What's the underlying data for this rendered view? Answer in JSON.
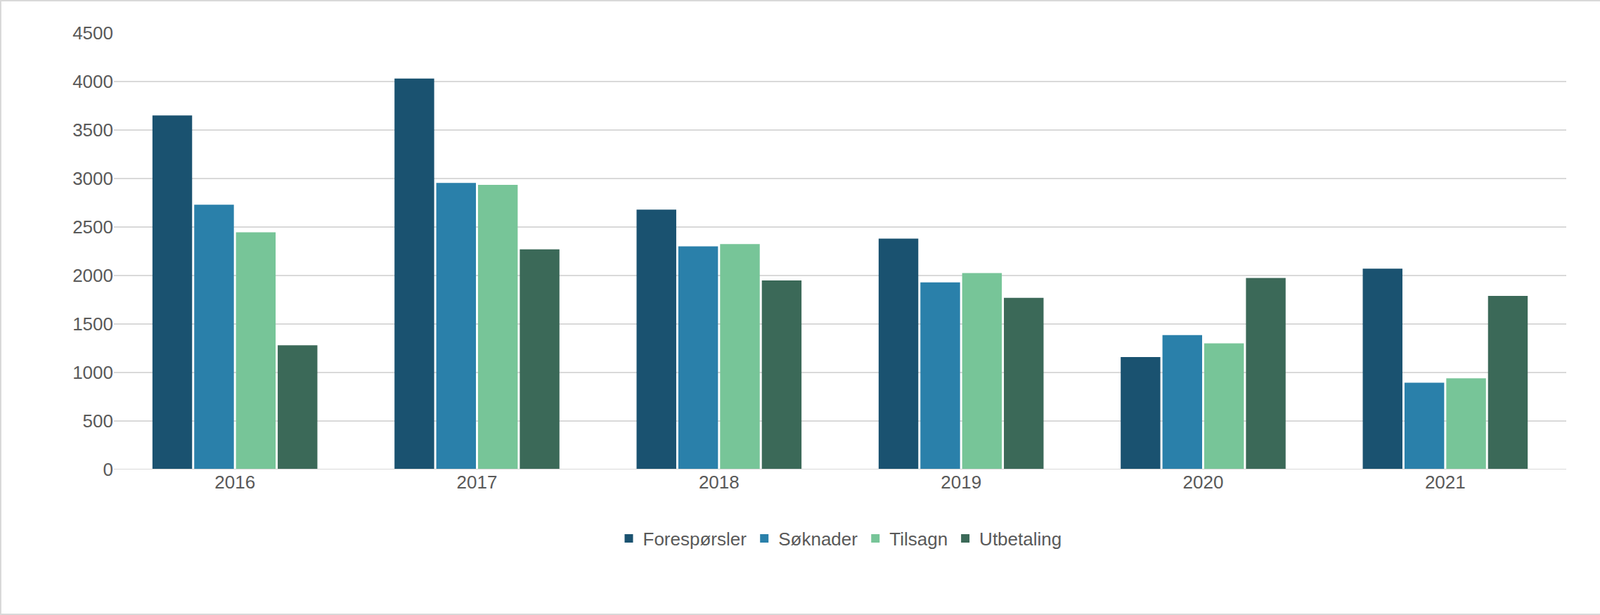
{
  "chart_data": {
    "type": "bar",
    "categories": [
      "2016",
      "2017",
      "2018",
      "2019",
      "2020",
      "2021"
    ],
    "series": [
      {
        "name": "Forespørsler",
        "color": "#1a5270",
        "values": [
          3650,
          4030,
          2680,
          2380,
          1160,
          2070
        ]
      },
      {
        "name": "Søknader",
        "color": "#2a80aa",
        "values": [
          2730,
          2955,
          2300,
          1930,
          1385,
          895
        ]
      },
      {
        "name": "Tilsagn",
        "color": "#77c598",
        "values": [
          2445,
          2935,
          2325,
          2025,
          1300,
          940
        ]
      },
      {
        "name": "Utbetaling",
        "color": "#3b6958",
        "values": [
          1280,
          2270,
          1950,
          1770,
          1975,
          1790
        ]
      }
    ],
    "ylim": [
      0,
      4500
    ],
    "yticks": [
      0,
      500,
      1000,
      1500,
      2000,
      2500,
      3000,
      3500,
      4000,
      4500
    ],
    "grid": true,
    "legend": "bottom"
  }
}
